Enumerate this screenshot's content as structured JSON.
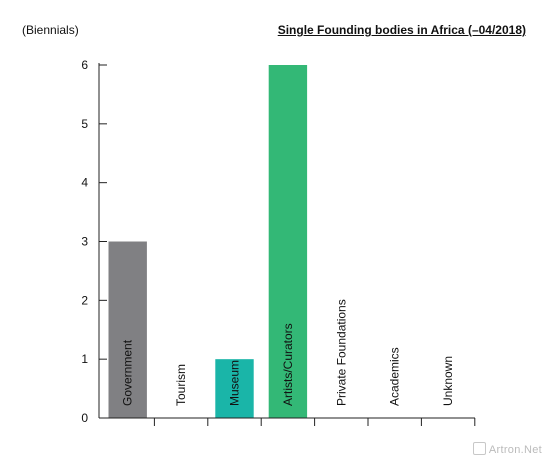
{
  "chart_data": {
    "type": "bar",
    "title": "Single Founding bodies in Africa (–04/2018)",
    "ylabel": "(Biennials)",
    "xlabel": "",
    "categories": [
      "Government",
      "Tourism",
      "Museum",
      "Artists/Curators",
      "Private Foundations",
      "Academics",
      "Unknown"
    ],
    "values": [
      3,
      0,
      1,
      6,
      0,
      0,
      0
    ],
    "colors": [
      "#808083",
      "#808083",
      "#1ab5a8",
      "#33b876",
      "#808083",
      "#808083",
      "#808083"
    ],
    "ylim": [
      0,
      6
    ],
    "yticks": [
      0,
      1,
      2,
      3,
      4,
      5,
      6
    ],
    "grid": false,
    "legend": "none"
  },
  "watermark": "Artron.Net"
}
